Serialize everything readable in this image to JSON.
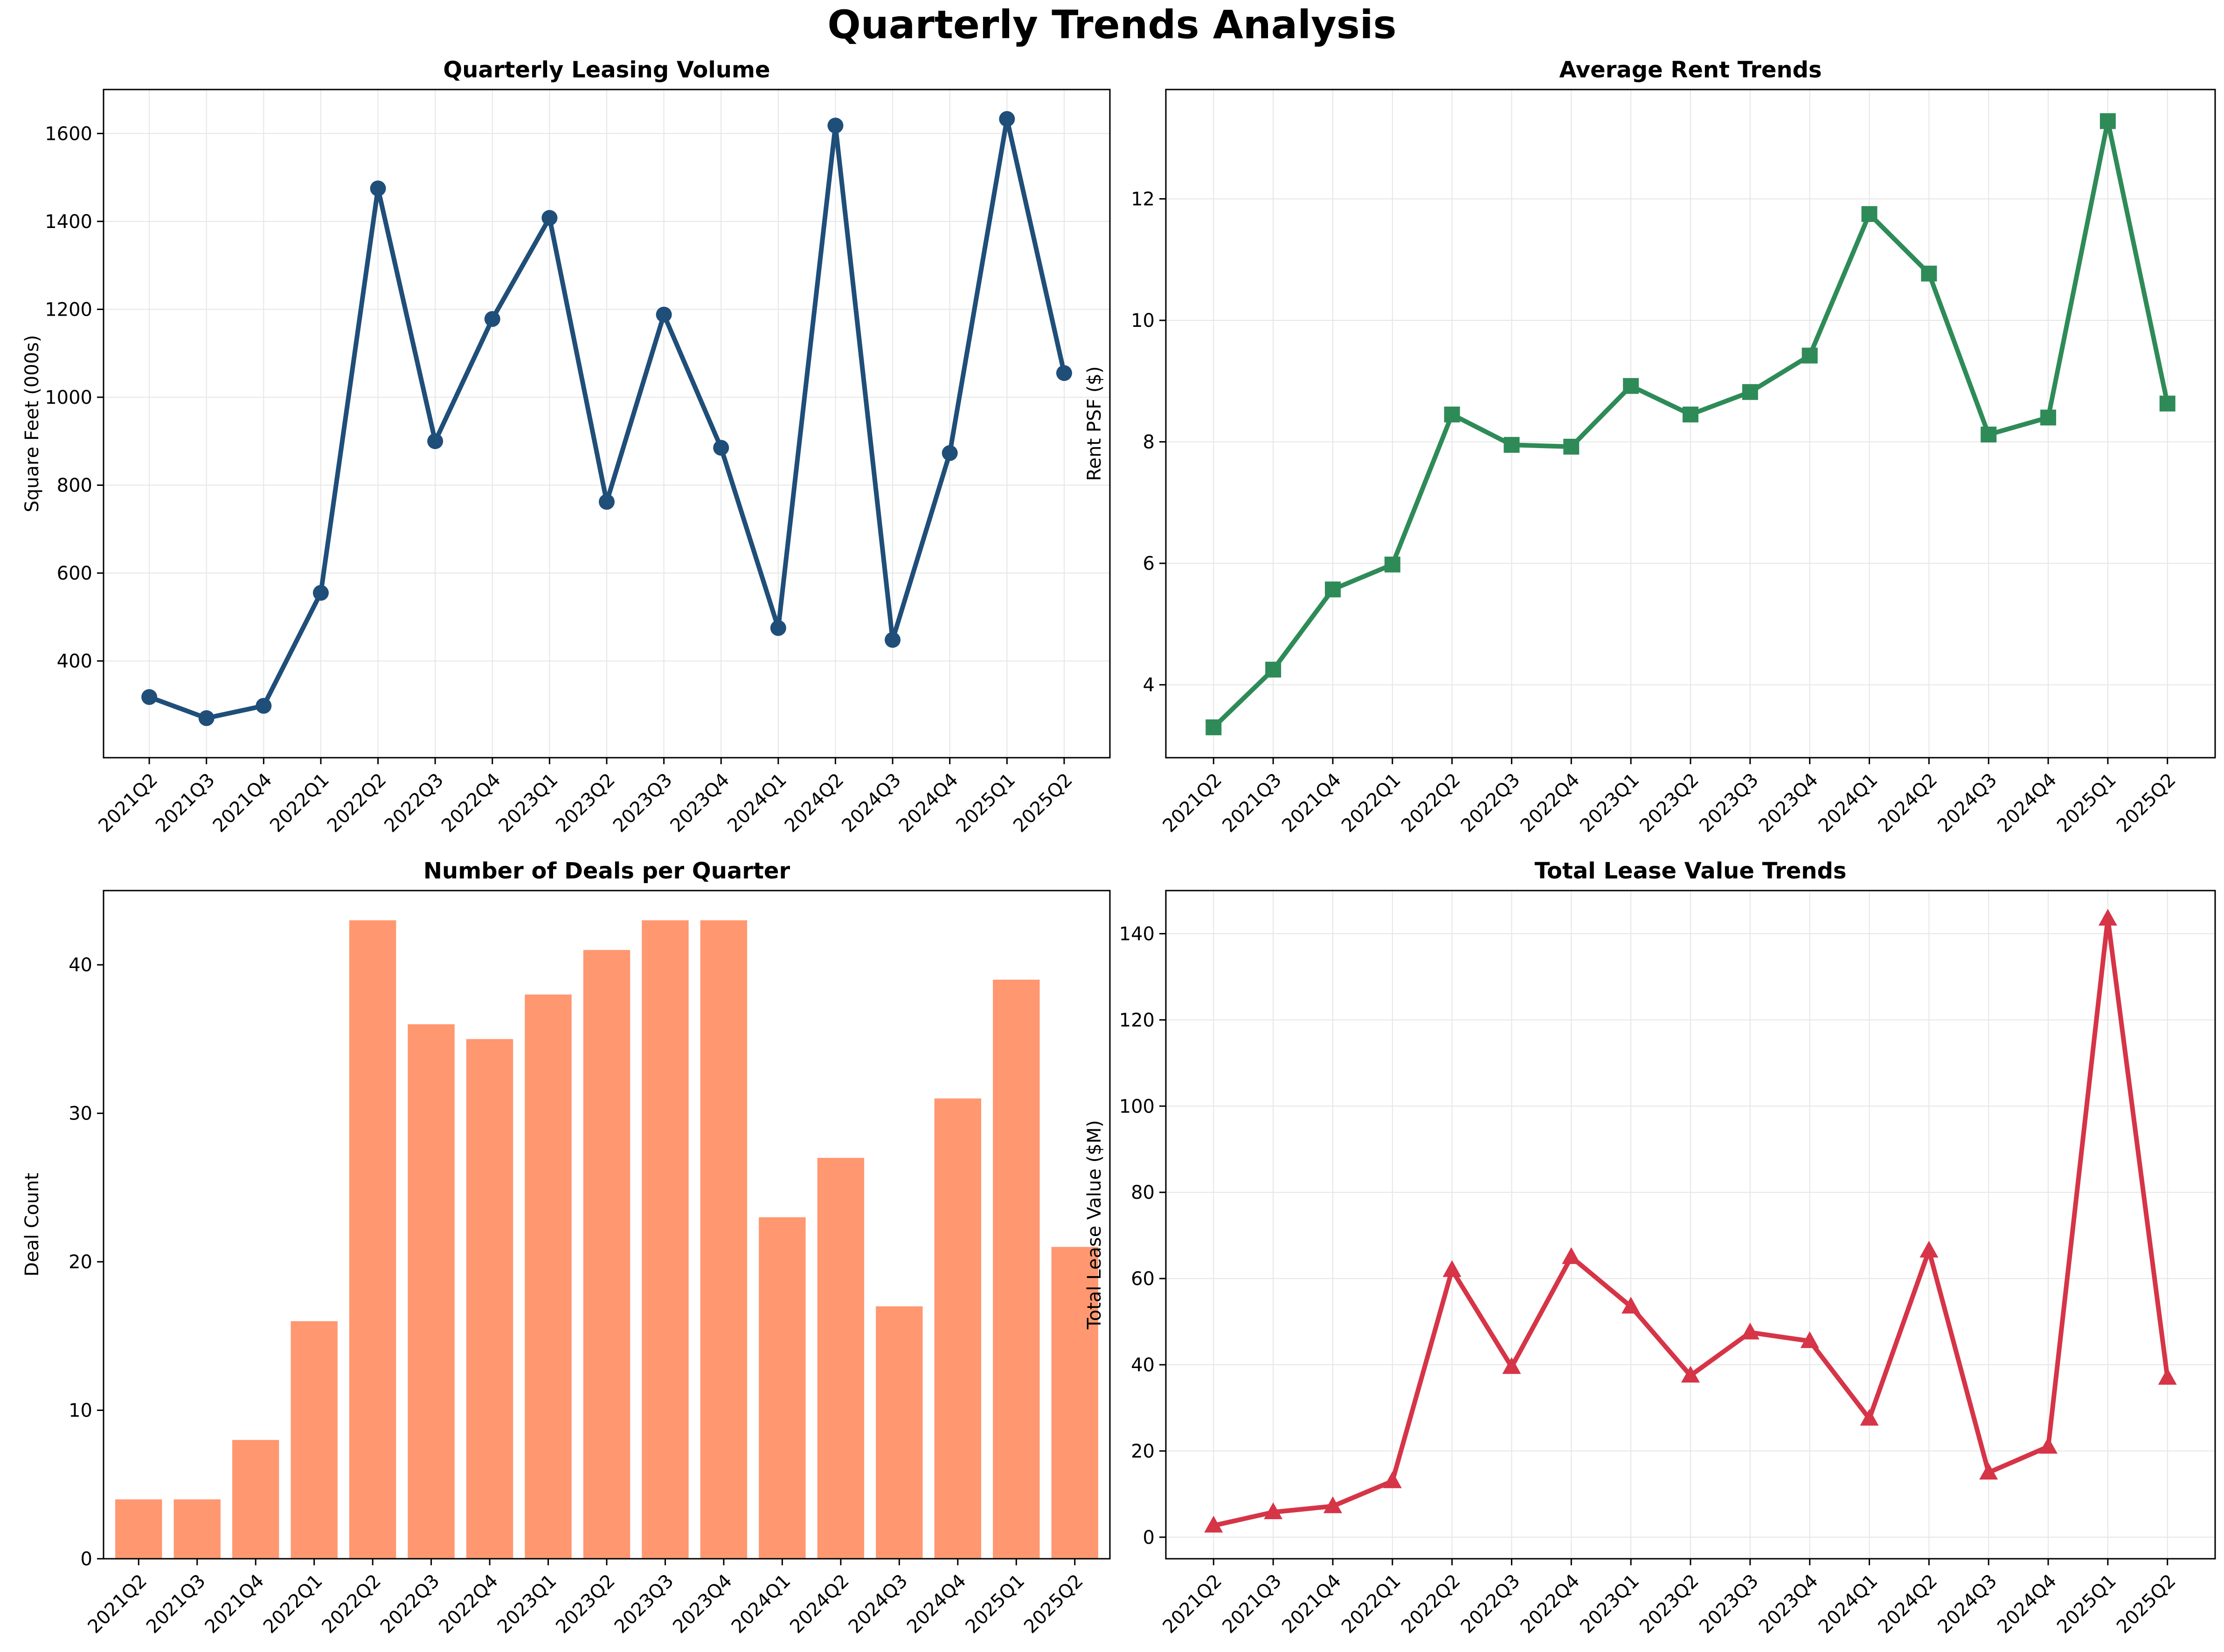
{
  "suptitle": "Quarterly Trends Analysis",
  "chart_data": [
    {
      "type": "line",
      "title": "Quarterly Leasing Volume",
      "xlabel": "",
      "ylabel": "Square Feet (000s)",
      "categories": [
        "2021Q2",
        "2021Q3",
        "2021Q4",
        "2022Q1",
        "2022Q2",
        "2022Q3",
        "2022Q4",
        "2023Q1",
        "2023Q2",
        "2023Q3",
        "2023Q4",
        "2024Q1",
        "2024Q2",
        "2024Q3",
        "2024Q4",
        "2025Q1",
        "2025Q2"
      ],
      "values": [
        318,
        270,
        298,
        555,
        1475,
        900,
        1178,
        1408,
        762,
        1188,
        885,
        475,
        1618,
        448,
        873,
        1633,
        1055
      ],
      "ylim": [
        180,
        1700
      ],
      "yticks": [
        400,
        600,
        800,
        1000,
        1200,
        1400,
        1600
      ],
      "color": "#1f4e79",
      "marker": "circle",
      "grid": true
    },
    {
      "type": "line",
      "title": "Average Rent Trends",
      "xlabel": "",
      "ylabel": "Rent PSF ($)",
      "categories": [
        "2021Q2",
        "2021Q3",
        "2021Q4",
        "2022Q1",
        "2022Q2",
        "2022Q3",
        "2022Q4",
        "2023Q1",
        "2023Q2",
        "2023Q3",
        "2023Q4",
        "2024Q1",
        "2024Q2",
        "2024Q3",
        "2024Q4",
        "2025Q1",
        "2025Q2"
      ],
      "values": [
        3.3,
        4.25,
        5.57,
        5.98,
        8.45,
        7.95,
        7.92,
        8.92,
        8.45,
        8.82,
        9.42,
        11.75,
        10.77,
        8.12,
        8.4,
        13.28,
        8.63
      ],
      "ylim": [
        2.8,
        13.8
      ],
      "yticks": [
        4,
        6,
        8,
        10,
        12
      ],
      "color": "#2e8b57",
      "marker": "square",
      "grid": true
    },
    {
      "type": "bar",
      "title": "Number of Deals per Quarter",
      "xlabel": "",
      "ylabel": "Deal Count",
      "categories": [
        "2021Q2",
        "2021Q3",
        "2021Q4",
        "2022Q1",
        "2022Q2",
        "2022Q3",
        "2022Q4",
        "2023Q1",
        "2023Q2",
        "2023Q3",
        "2023Q4",
        "2024Q1",
        "2024Q2",
        "2024Q3",
        "2024Q4",
        "2025Q1",
        "2025Q2"
      ],
      "values": [
        4,
        4,
        8,
        16,
        43,
        36,
        35,
        38,
        41,
        43,
        43,
        23,
        27,
        17,
        31,
        39,
        21
      ],
      "ylim": [
        0,
        45
      ],
      "yticks": [
        0,
        10,
        20,
        30,
        40
      ],
      "color": "#ff9770",
      "grid": false
    },
    {
      "type": "line",
      "title": "Total Lease Value Trends",
      "xlabel": "",
      "ylabel": "Total Lease Value ($M)",
      "categories": [
        "2021Q2",
        "2021Q3",
        "2021Q4",
        "2022Q1",
        "2022Q2",
        "2022Q3",
        "2022Q4",
        "2023Q1",
        "2023Q2",
        "2023Q3",
        "2023Q4",
        "2024Q1",
        "2024Q2",
        "2024Q3",
        "2024Q4",
        "2025Q1",
        "2025Q2"
      ],
      "values": [
        2.7,
        5.8,
        7.2,
        13.0,
        62.0,
        39.5,
        65.0,
        53.5,
        37.5,
        47.5,
        45.5,
        27.5,
        66.5,
        15.0,
        21.0,
        143.5,
        37.0
      ],
      "ylim": [
        -5,
        150
      ],
      "yticks": [
        0,
        20,
        40,
        60,
        80,
        100,
        120,
        140
      ],
      "color": "#d63447",
      "marker": "triangle",
      "grid": true
    }
  ]
}
